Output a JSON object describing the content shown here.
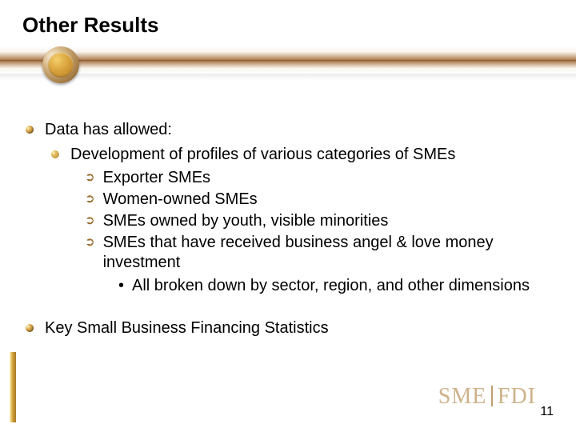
{
  "title": "Other Results",
  "pageNumber": "11",
  "logo": {
    "left": "SME",
    "right": "FDI"
  },
  "colors": {
    "band_mid": "#8a5a30",
    "coin_gold": "#d9a33d",
    "bullet_gold": "#a8792e",
    "arrow": "#9a6c2e",
    "stripe": "#c99a3a",
    "logo_text": "#cdb38b",
    "text": "#000000",
    "background": "#ffffff"
  },
  "l1_a": "Data has allowed:",
  "l2_a": "Development of profiles of various categories of SMEs",
  "l3_a": "Exporter SMEs",
  "l3_b": "Women-owned SMEs",
  "l3_c": "SMEs owned by youth, visible minorities",
  "l3_d": "SMEs that have received business angel & love money investment",
  "l4_a": "All broken down by sector, region, and other dimensions",
  "l1_b": "Key Small Business Financing Statistics"
}
